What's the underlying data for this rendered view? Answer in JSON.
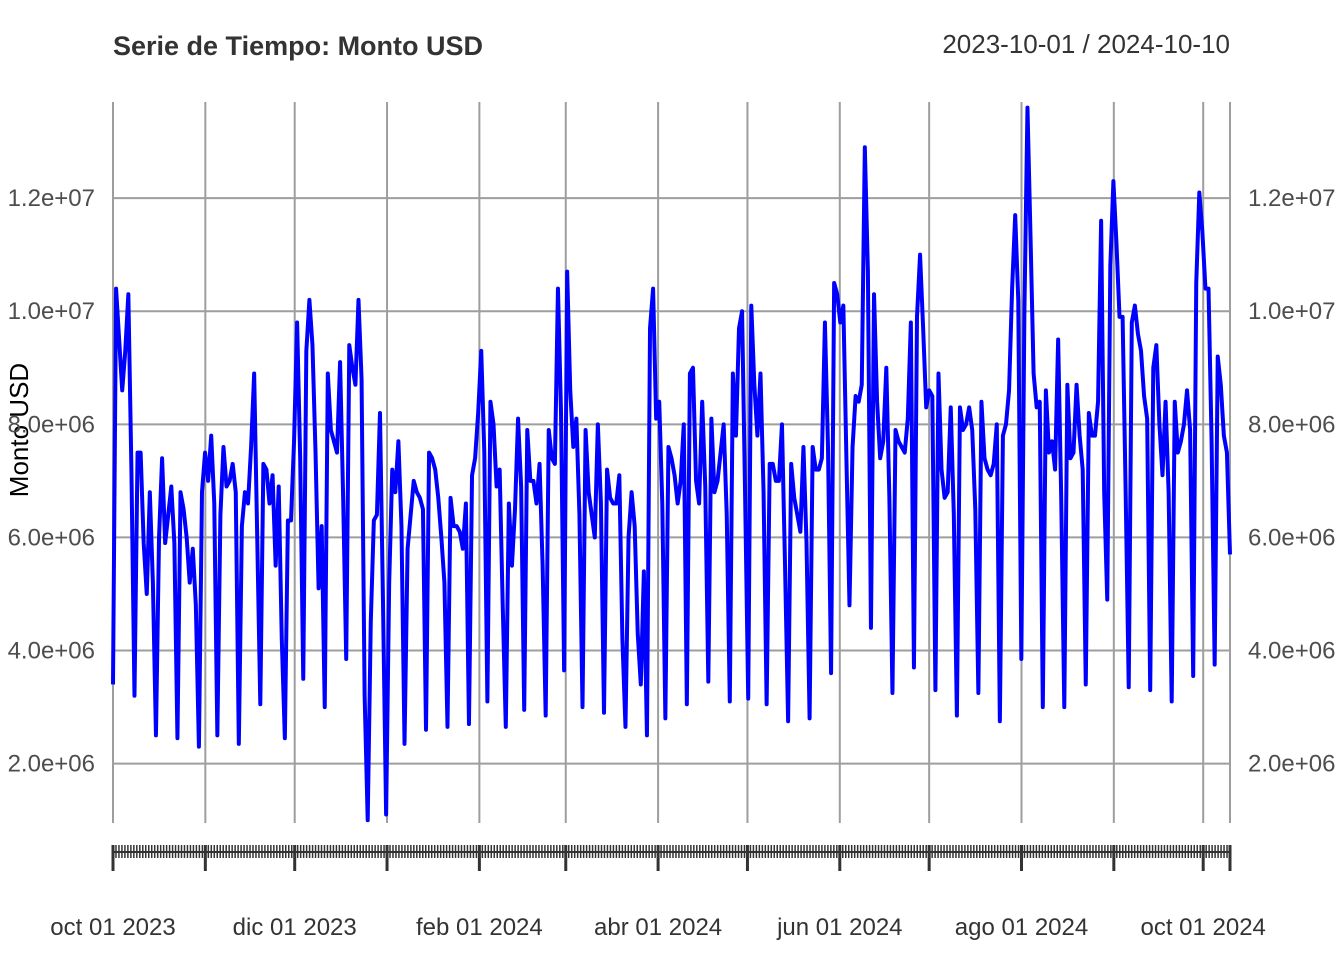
{
  "chart_data": {
    "type": "line",
    "title": "Serie de Tiempo: Monto USD",
    "date_range_label": "2023-10-01 / 2024-10-10",
    "ylabel": "Monto USD",
    "xlabel": "",
    "x_start": "2023-10-01",
    "x_end": "2024-10-10",
    "ylim": [
      950000,
      13700000
    ],
    "y_ticks": [
      2000000,
      4000000,
      6000000,
      8000000,
      10000000,
      12000000
    ],
    "y_tick_labels": [
      "2.0e+06",
      "4.0e+06",
      "6.0e+06",
      "8.0e+06",
      "1.0e+07",
      "1.2e+07"
    ],
    "x_major_ticks": [
      "2023-10-01",
      "2023-12-01",
      "2024-02-01",
      "2024-04-01",
      "2024-06-01",
      "2024-08-01",
      "2024-10-01"
    ],
    "x_major_labels": [
      "oct 01 2023",
      "dic 01 2023",
      "feb 01 2024",
      "abr 01 2024",
      "jun 01 2024",
      "ago 01 2024",
      "oct 01 2024"
    ],
    "x_grid_dates": [
      "2023-10-01",
      "2023-11-01",
      "2023-12-01",
      "2024-01-01",
      "2024-02-01",
      "2024-03-01",
      "2024-04-01",
      "2024-05-01",
      "2024-06-01",
      "2024-07-01",
      "2024-08-01",
      "2024-09-01",
      "2024-10-01",
      "2024-10-10"
    ],
    "grid": true,
    "legend": "none",
    "series": [
      {
        "color": "#0000ff",
        "values": [
          3400000,
          10400000,
          9500000,
          8600000,
          9300000,
          10300000,
          7200000,
          3200000,
          7500000,
          7500000,
          5900000,
          5000000,
          6800000,
          5200000,
          2500000,
          6000000,
          7400000,
          5900000,
          6400000,
          6900000,
          5900000,
          2450000,
          6800000,
          6500000,
          6000000,
          5200000,
          5800000,
          4800000,
          2300000,
          6800000,
          7500000,
          7000000,
          7800000,
          6600000,
          2500000,
          6400000,
          7600000,
          6900000,
          7000000,
          7300000,
          6800000,
          2350000,
          6200000,
          6800000,
          6600000,
          7600000,
          8900000,
          6000000,
          3050000,
          7300000,
          7200000,
          6600000,
          7100000,
          5500000,
          6900000,
          4200000,
          2450000,
          6300000,
          6300000,
          7700000,
          9800000,
          7400000,
          3500000,
          9300000,
          10200000,
          9400000,
          7500000,
          5100000,
          6200000,
          3000000,
          8900000,
          7900000,
          7700000,
          7500000,
          9100000,
          6700000,
          3850000,
          9400000,
          9000000,
          8700000,
          10200000,
          8800000,
          3200000,
          1000000,
          4500000,
          6300000,
          6400000,
          8200000,
          4800000,
          1100000,
          5200000,
          7200000,
          6800000,
          7700000,
          6200000,
          2350000,
          5800000,
          6400000,
          7000000,
          6800000,
          6700000,
          6500000,
          2600000,
          7500000,
          7400000,
          7200000,
          6700000,
          6000000,
          5200000,
          2650000,
          6700000,
          6200000,
          6200000,
          6100000,
          5800000,
          6600000,
          2700000,
          7100000,
          7400000,
          8200000,
          9300000,
          7500000,
          3100000,
          8400000,
          8000000,
          6900000,
          7200000,
          4800000,
          2650000,
          6600000,
          5500000,
          6500000,
          8100000,
          6900000,
          2950000,
          7900000,
          7000000,
          7000000,
          6600000,
          7300000,
          5500000,
          2850000,
          7900000,
          7400000,
          7300000,
          10400000,
          8200000,
          3650000,
          10700000,
          8600000,
          7600000,
          8100000,
          6400000,
          3000000,
          7900000,
          6800000,
          6400000,
          6000000,
          8000000,
          6600000,
          2900000,
          7200000,
          6700000,
          6600000,
          6600000,
          7100000,
          4200000,
          2650000,
          6000000,
          6800000,
          6200000,
          4300000,
          3400000,
          5400000,
          2500000,
          9700000,
          10400000,
          8100000,
          8400000,
          6600000,
          2800000,
          7600000,
          7400000,
          7100000,
          6600000,
          7000000,
          8000000,
          3050000,
          8900000,
          9000000,
          7000000,
          6600000,
          8400000,
          6900000,
          3450000,
          8100000,
          6800000,
          7000000,
          7500000,
          8000000,
          6400000,
          3100000,
          8900000,
          7800000,
          9700000,
          10000000,
          6700000,
          3150000,
          10100000,
          8700000,
          7800000,
          8900000,
          6800000,
          3050000,
          7300000,
          7300000,
          7000000,
          7000000,
          8000000,
          5500000,
          2750000,
          7300000,
          6700000,
          6400000,
          6100000,
          7600000,
          5900000,
          2800000,
          7600000,
          7200000,
          7200000,
          7400000,
          9800000,
          7600000,
          3600000,
          10500000,
          10300000,
          9800000,
          10100000,
          7400000,
          4800000,
          7600000,
          8500000,
          8400000,
          8700000,
          12900000,
          10700000,
          4400000,
          10300000,
          8400000,
          7400000,
          7700000,
          9000000,
          6700000,
          3250000,
          7900000,
          7700000,
          7600000,
          7500000,
          8100000,
          9800000,
          3700000,
          9900000,
          11000000,
          9700000,
          8300000,
          8600000,
          8500000,
          3300000,
          8900000,
          7200000,
          6700000,
          6800000,
          8300000,
          6400000,
          2850000,
          8300000,
          7900000,
          8000000,
          8300000,
          7900000,
          6500000,
          3250000,
          8400000,
          7400000,
          7200000,
          7100000,
          7300000,
          8000000,
          2750000,
          7800000,
          8000000,
          8600000,
          10400000,
          11700000,
          10200000,
          3850000,
          10000000,
          13600000,
          11300000,
          8900000,
          8300000,
          8400000,
          3000000,
          8600000,
          7500000,
          7700000,
          7200000,
          9500000,
          6700000,
          3000000,
          8700000,
          7400000,
          7500000,
          8700000,
          7800000,
          7200000,
          3400000,
          8200000,
          7800000,
          7800000,
          8400000,
          11600000,
          6800000,
          4900000,
          10800000,
          12300000,
          11200000,
          9900000,
          9900000,
          6800000,
          3350000,
          9800000,
          10100000,
          9600000,
          9300000,
          8500000,
          8100000,
          3300000,
          9000000,
          9400000,
          8000000,
          7100000,
          8400000,
          6800000,
          3100000,
          8400000,
          7500000,
          7700000,
          8000000,
          8600000,
          7900000,
          3550000,
          10500000,
          12100000,
          11400000,
          10400000,
          10400000,
          7700000,
          3750000,
          9200000,
          8700000,
          7800000,
          7500000,
          5700000
        ]
      }
    ]
  }
}
